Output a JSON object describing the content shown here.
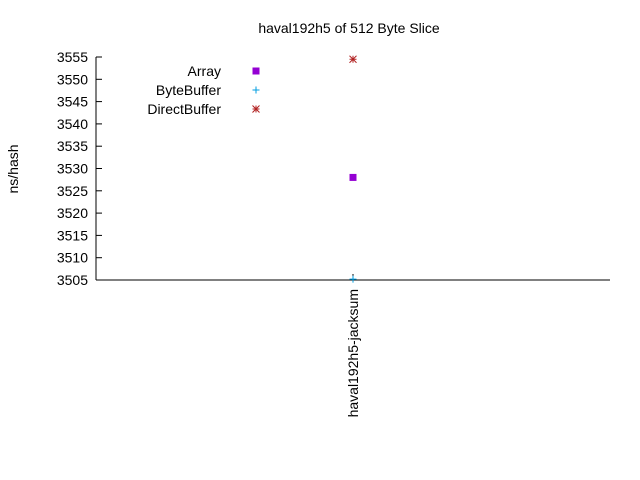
{
  "chart_data": {
    "type": "scatter",
    "title": "haval192h5 of 512 Byte Slice",
    "xlabel": "",
    "ylabel": "ns/hash",
    "categories": [
      "haval192h5-jacksum"
    ],
    "ylim": [
      3505,
      3555
    ],
    "yticks": [
      3505,
      3510,
      3515,
      3520,
      3525,
      3530,
      3535,
      3540,
      3545,
      3550,
      3555
    ],
    "grid": false,
    "legend_position": "top-left",
    "series": [
      {
        "name": "Array",
        "values": [
          3528
        ],
        "color": "#9400d3",
        "marker": "filled-square"
      },
      {
        "name": "ByteBuffer",
        "values": [
          3505.2
        ],
        "color": "#009ee0",
        "marker": "plus"
      },
      {
        "name": "DirectBuffer",
        "values": [
          3554.5
        ],
        "color": "#b22222",
        "marker": "star"
      }
    ]
  }
}
